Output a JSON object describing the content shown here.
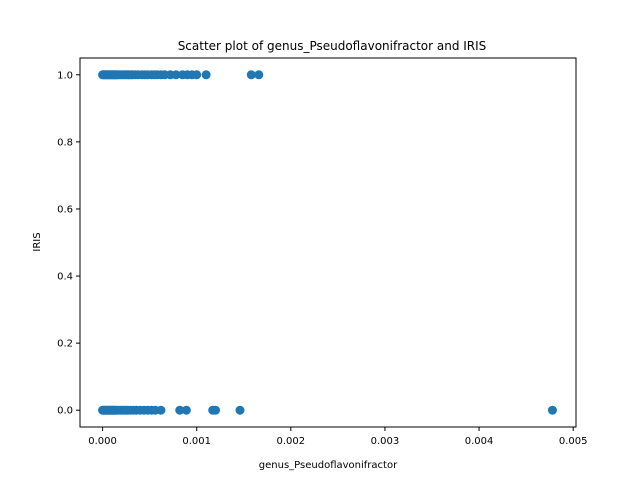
{
  "chart_data": {
    "type": "scatter",
    "title": "Scatter plot of genus_Pseudoflavonifractor and IRIS",
    "xlabel": "genus_Pseudoflavonifractor",
    "ylabel": "IRIS",
    "xlim": [
      -0.00024,
      0.00503
    ],
    "ylim": [
      -0.05,
      1.05
    ],
    "x_ticks": [
      0.0,
      0.001,
      0.002,
      0.003,
      0.004,
      0.005
    ],
    "x_tick_labels": [
      "0.000",
      "0.001",
      "0.002",
      "0.003",
      "0.004",
      "0.005"
    ],
    "y_ticks": [
      0.0,
      0.2,
      0.4,
      0.6,
      0.8,
      1.0
    ],
    "y_tick_labels": [
      "0.0",
      "0.2",
      "0.4",
      "0.6",
      "0.8",
      "1.0"
    ],
    "grid": false,
    "marker_color": "#1f77b4",
    "series": [
      {
        "x": [
          0.0,
          1e-05,
          2e-05,
          3e-05,
          4e-05,
          5e-05,
          6e-05,
          7e-05,
          8e-05,
          9e-05,
          0.0001,
          0.00011,
          0.00012,
          0.00013,
          0.00014,
          0.00015,
          0.00016,
          0.00018,
          0.0002,
          0.00022,
          0.00024,
          0.00026,
          0.00028,
          0.0003,
          0.00032,
          0.00035,
          0.00038,
          0.00042,
          0.00045,
          0.00048,
          0.00052,
          0.00055,
          0.00058,
          0.00062,
          0.00066,
          0.00072,
          0.00078,
          0.00085,
          0.0009,
          0.00095,
          0.001,
          0.0011,
          0.00158,
          0.00166
        ],
        "y": [
          1,
          1,
          1,
          1,
          1,
          1,
          1,
          1,
          1,
          1,
          1,
          1,
          1,
          1,
          1,
          1,
          1,
          1,
          1,
          1,
          1,
          1,
          1,
          1,
          1,
          1,
          1,
          1,
          1,
          1,
          1,
          1,
          1,
          1,
          1,
          1,
          1,
          1,
          1,
          1,
          1,
          1,
          1,
          1
        ]
      },
      {
        "x": [
          0.0,
          1e-05,
          2e-05,
          3e-05,
          4e-05,
          5e-05,
          6e-05,
          7e-05,
          8e-05,
          9e-05,
          0.0001,
          0.00011,
          0.00012,
          0.00013,
          0.00014,
          0.00015,
          0.00017,
          0.00019,
          0.00021,
          0.00023,
          0.00025,
          0.00027,
          0.0003,
          0.00033,
          0.00036,
          0.0004,
          0.00044,
          0.00048,
          0.00052,
          0.00056,
          0.00062,
          0.00082,
          0.00089,
          0.00117,
          0.0012,
          0.00146,
          0.00478
        ],
        "y": [
          0,
          0,
          0,
          0,
          0,
          0,
          0,
          0,
          0,
          0,
          0,
          0,
          0,
          0,
          0,
          0,
          0,
          0,
          0,
          0,
          0,
          0,
          0,
          0,
          0,
          0,
          0,
          0,
          0,
          0,
          0,
          0,
          0,
          0,
          0,
          0,
          0
        ]
      }
    ]
  }
}
